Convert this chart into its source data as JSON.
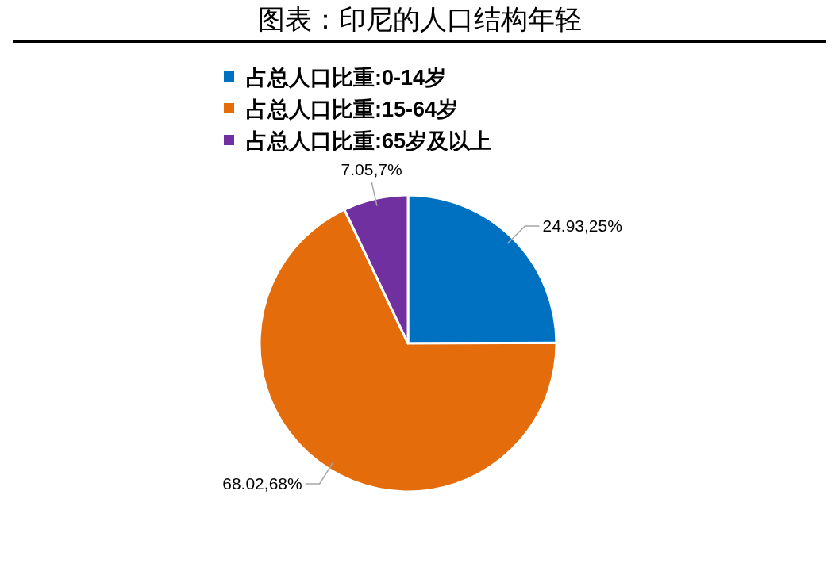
{
  "chart_data": {
    "type": "pie",
    "title": "图表：印尼的人口结构年轻",
    "categories": [
      "占总人口比重:0-14岁",
      "占总人口比重:15-64岁",
      "占总人口比重:65岁及以上"
    ],
    "values": [
      24.93,
      68.02,
      7.05
    ],
    "colors": [
      "#0070c0",
      "#e46c0a",
      "#7030a0"
    ],
    "value_labels": [
      "24.93,25%",
      "68.02,68%",
      "7.05,7%"
    ],
    "legend": "top"
  }
}
